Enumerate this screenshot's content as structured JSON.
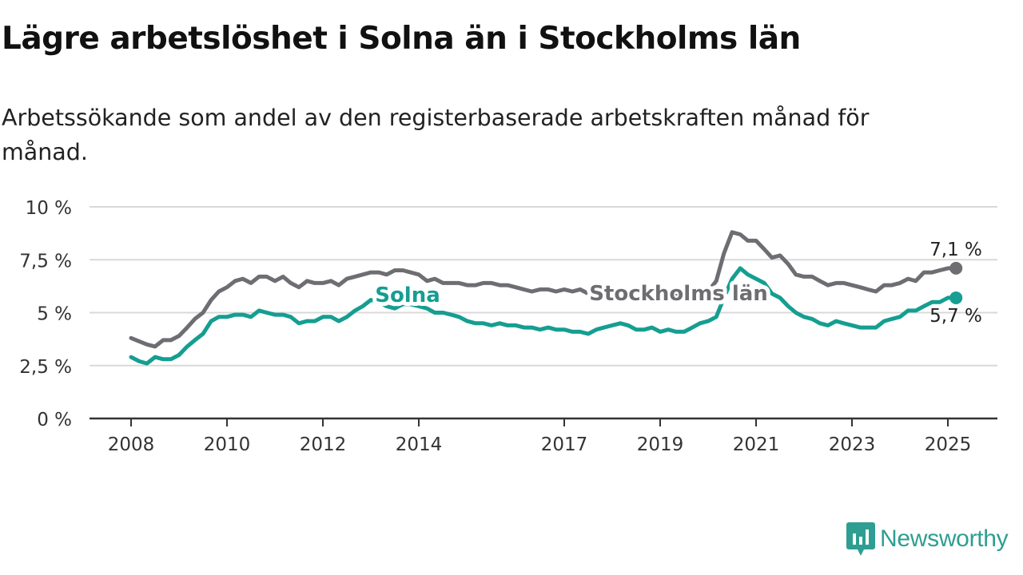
{
  "title": "Lägre arbetslöshet i Solna än i Stockholms län",
  "subtitle": "Arbetssökande som andel av den registerbaserade arbetskraften månad för månad.",
  "brand": {
    "name": "Newsworthy",
    "color": "#2e9e92",
    "icon": "newsworthy-logo-icon"
  },
  "chart_data": {
    "type": "line",
    "xlim": [
      2008,
      2025.9
    ],
    "ylim": [
      0,
      10
    ],
    "yticks": [
      {
        "value": 0,
        "label": "0 %"
      },
      {
        "value": 2.5,
        "label": "2,5 %"
      },
      {
        "value": 5,
        "label": "5 %"
      },
      {
        "value": 7.5,
        "label": "7,5 %"
      },
      {
        "value": 10,
        "label": "10 %"
      }
    ],
    "xticks": [
      {
        "value": 2008,
        "label": "2008"
      },
      {
        "value": 2010,
        "label": "2010"
      },
      {
        "value": 2012,
        "label": "2012"
      },
      {
        "value": 2014,
        "label": "2014"
      },
      {
        "value": 2017,
        "label": "2017"
      },
      {
        "value": 2019,
        "label": "2019"
      },
      {
        "value": 2021,
        "label": "2021"
      },
      {
        "value": 2023,
        "label": "2023"
      },
      {
        "value": 2025,
        "label": "2025"
      }
    ],
    "grid": true,
    "series": [
      {
        "name": "Stockholms län",
        "color": "#6e6d72",
        "end_label": "7,1 %",
        "points": [
          [
            2008.0,
            3.8
          ],
          [
            2008.33,
            3.5
          ],
          [
            2008.5,
            3.4
          ],
          [
            2008.67,
            3.7
          ],
          [
            2008.83,
            3.7
          ],
          [
            2009.0,
            3.9
          ],
          [
            2009.17,
            4.3
          ],
          [
            2009.33,
            4.7
          ],
          [
            2009.5,
            5.0
          ],
          [
            2009.67,
            5.6
          ],
          [
            2009.83,
            6.0
          ],
          [
            2010.0,
            6.2
          ],
          [
            2010.17,
            6.5
          ],
          [
            2010.33,
            6.6
          ],
          [
            2010.5,
            6.4
          ],
          [
            2010.67,
            6.7
          ],
          [
            2010.83,
            6.7
          ],
          [
            2011.0,
            6.5
          ],
          [
            2011.17,
            6.7
          ],
          [
            2011.33,
            6.4
          ],
          [
            2011.5,
            6.2
          ],
          [
            2011.67,
            6.5
          ],
          [
            2011.83,
            6.4
          ],
          [
            2012.0,
            6.4
          ],
          [
            2012.17,
            6.5
          ],
          [
            2012.33,
            6.3
          ],
          [
            2012.5,
            6.6
          ],
          [
            2012.67,
            6.7
          ],
          [
            2012.83,
            6.8
          ],
          [
            2013.0,
            6.9
          ],
          [
            2013.17,
            6.9
          ],
          [
            2013.33,
            6.8
          ],
          [
            2013.5,
            7.0
          ],
          [
            2013.67,
            7.0
          ],
          [
            2013.83,
            6.9
          ],
          [
            2014.0,
            6.8
          ],
          [
            2014.17,
            6.5
          ],
          [
            2014.33,
            6.6
          ],
          [
            2014.5,
            6.4
          ],
          [
            2014.67,
            6.4
          ],
          [
            2014.83,
            6.4
          ],
          [
            2015.0,
            6.3
          ],
          [
            2015.17,
            6.3
          ],
          [
            2015.33,
            6.4
          ],
          [
            2015.5,
            6.4
          ],
          [
            2015.67,
            6.3
          ],
          [
            2015.83,
            6.3
          ],
          [
            2016.0,
            6.2
          ],
          [
            2016.17,
            6.1
          ],
          [
            2016.33,
            6.0
          ],
          [
            2016.5,
            6.1
          ],
          [
            2016.67,
            6.1
          ],
          [
            2016.83,
            6.0
          ],
          [
            2017.0,
            6.1
          ],
          [
            2017.17,
            6.0
          ],
          [
            2017.33,
            6.1
          ],
          [
            2017.5,
            5.9
          ],
          [
            2017.67,
            6.1
          ],
          [
            2017.83,
            6.0
          ],
          [
            2018.0,
            6.0
          ],
          [
            2018.17,
            6.0
          ],
          [
            2018.33,
            6.0
          ],
          [
            2018.5,
            5.9
          ],
          [
            2018.67,
            5.9
          ],
          [
            2018.83,
            5.9
          ],
          [
            2019.0,
            5.9
          ],
          [
            2019.17,
            5.9
          ],
          [
            2019.33,
            5.9
          ],
          [
            2019.5,
            5.9
          ],
          [
            2019.67,
            5.9
          ],
          [
            2019.83,
            5.9
          ],
          [
            2020.0,
            6.0
          ],
          [
            2020.17,
            6.5
          ],
          [
            2020.33,
            7.8
          ],
          [
            2020.5,
            8.8
          ],
          [
            2020.67,
            8.7
          ],
          [
            2020.83,
            8.4
          ],
          [
            2021.0,
            8.4
          ],
          [
            2021.17,
            8.0
          ],
          [
            2021.33,
            7.6
          ],
          [
            2021.5,
            7.7
          ],
          [
            2021.67,
            7.3
          ],
          [
            2021.83,
            6.8
          ],
          [
            2022.0,
            6.7
          ],
          [
            2022.17,
            6.7
          ],
          [
            2022.33,
            6.5
          ],
          [
            2022.5,
            6.3
          ],
          [
            2022.67,
            6.4
          ],
          [
            2022.83,
            6.4
          ],
          [
            2023.0,
            6.3
          ],
          [
            2023.17,
            6.2
          ],
          [
            2023.33,
            6.1
          ],
          [
            2023.5,
            6.0
          ],
          [
            2023.67,
            6.3
          ],
          [
            2023.83,
            6.3
          ],
          [
            2024.0,
            6.4
          ],
          [
            2024.17,
            6.6
          ],
          [
            2024.33,
            6.5
          ],
          [
            2024.5,
            6.9
          ],
          [
            2024.67,
            6.9
          ],
          [
            2024.83,
            7.0
          ],
          [
            2025.0,
            7.1
          ],
          [
            2025.17,
            7.1
          ]
        ]
      },
      {
        "name": "Solna",
        "color": "#159e91",
        "end_label": "5,7 %",
        "points": [
          [
            2008.0,
            2.9
          ],
          [
            2008.17,
            2.7
          ],
          [
            2008.33,
            2.6
          ],
          [
            2008.5,
            2.9
          ],
          [
            2008.67,
            2.8
          ],
          [
            2008.83,
            2.8
          ],
          [
            2009.0,
            3.0
          ],
          [
            2009.17,
            3.4
          ],
          [
            2009.33,
            3.7
          ],
          [
            2009.5,
            4.0
          ],
          [
            2009.67,
            4.6
          ],
          [
            2009.83,
            4.8
          ],
          [
            2010.0,
            4.8
          ],
          [
            2010.17,
            4.9
          ],
          [
            2010.33,
            4.9
          ],
          [
            2010.5,
            4.8
          ],
          [
            2010.67,
            5.1
          ],
          [
            2010.83,
            5.0
          ],
          [
            2011.0,
            4.9
          ],
          [
            2011.17,
            4.9
          ],
          [
            2011.33,
            4.8
          ],
          [
            2011.5,
            4.5
          ],
          [
            2011.67,
            4.6
          ],
          [
            2011.83,
            4.6
          ],
          [
            2012.0,
            4.8
          ],
          [
            2012.17,
            4.8
          ],
          [
            2012.33,
            4.6
          ],
          [
            2012.5,
            4.8
          ],
          [
            2012.67,
            5.1
          ],
          [
            2012.83,
            5.3
          ],
          [
            2013.0,
            5.6
          ],
          [
            2013.17,
            5.5
          ],
          [
            2013.33,
            5.3
          ],
          [
            2013.5,
            5.2
          ],
          [
            2013.67,
            5.4
          ],
          [
            2013.83,
            5.4
          ],
          [
            2014.0,
            5.3
          ],
          [
            2014.17,
            5.2
          ],
          [
            2014.33,
            5.0
          ],
          [
            2014.5,
            5.0
          ],
          [
            2014.67,
            4.9
          ],
          [
            2014.83,
            4.8
          ],
          [
            2015.0,
            4.6
          ],
          [
            2015.17,
            4.5
          ],
          [
            2015.33,
            4.5
          ],
          [
            2015.5,
            4.4
          ],
          [
            2015.67,
            4.5
          ],
          [
            2015.83,
            4.4
          ],
          [
            2016.0,
            4.4
          ],
          [
            2016.17,
            4.3
          ],
          [
            2016.33,
            4.3
          ],
          [
            2016.5,
            4.2
          ],
          [
            2016.67,
            4.3
          ],
          [
            2016.83,
            4.2
          ],
          [
            2017.0,
            4.2
          ],
          [
            2017.17,
            4.1
          ],
          [
            2017.33,
            4.1
          ],
          [
            2017.5,
            4.0
          ],
          [
            2017.67,
            4.2
          ],
          [
            2017.83,
            4.3
          ],
          [
            2018.0,
            4.4
          ],
          [
            2018.17,
            4.5
          ],
          [
            2018.33,
            4.4
          ],
          [
            2018.5,
            4.2
          ],
          [
            2018.67,
            4.2
          ],
          [
            2018.83,
            4.3
          ],
          [
            2019.0,
            4.1
          ],
          [
            2019.17,
            4.2
          ],
          [
            2019.33,
            4.1
          ],
          [
            2019.5,
            4.1
          ],
          [
            2019.67,
            4.3
          ],
          [
            2019.83,
            4.5
          ],
          [
            2020.0,
            4.6
          ],
          [
            2020.17,
            4.8
          ],
          [
            2020.33,
            5.7
          ],
          [
            2020.5,
            6.6
          ],
          [
            2020.67,
            7.1
          ],
          [
            2020.83,
            6.8
          ],
          [
            2021.0,
            6.6
          ],
          [
            2021.17,
            6.4
          ],
          [
            2021.33,
            5.9
          ],
          [
            2021.5,
            5.7
          ],
          [
            2021.67,
            5.3
          ],
          [
            2021.83,
            5.0
          ],
          [
            2022.0,
            4.8
          ],
          [
            2022.17,
            4.7
          ],
          [
            2022.33,
            4.5
          ],
          [
            2022.5,
            4.4
          ],
          [
            2022.67,
            4.6
          ],
          [
            2022.83,
            4.5
          ],
          [
            2023.0,
            4.4
          ],
          [
            2023.17,
            4.3
          ],
          [
            2023.33,
            4.3
          ],
          [
            2023.5,
            4.3
          ],
          [
            2023.67,
            4.6
          ],
          [
            2023.83,
            4.7
          ],
          [
            2024.0,
            4.8
          ],
          [
            2024.17,
            5.1
          ],
          [
            2024.33,
            5.1
          ],
          [
            2024.5,
            5.3
          ],
          [
            2024.67,
            5.5
          ],
          [
            2024.83,
            5.5
          ],
          [
            2025.0,
            5.7
          ],
          [
            2025.17,
            5.7
          ]
        ]
      }
    ]
  }
}
